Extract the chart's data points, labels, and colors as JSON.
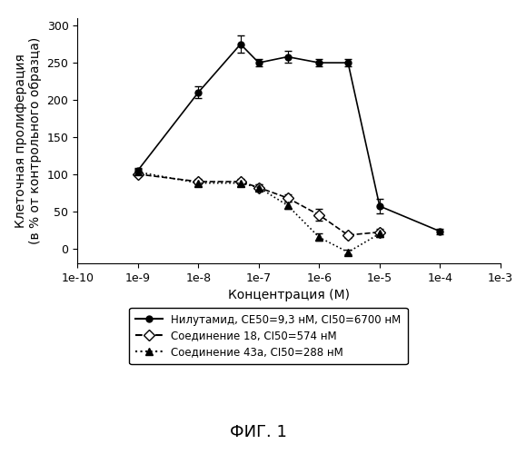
{
  "title": "",
  "xlabel": "Концентрация (М)",
  "ylabel": "Клеточная пролиферация\n(в % от контрольного образца)",
  "fig_label": "ФИГ. 1",
  "xlim_log": [
    -10,
    -3
  ],
  "ylim": [
    -20,
    310
  ],
  "yticks": [
    0,
    50,
    100,
    150,
    200,
    250,
    300
  ],
  "xticks_log": [
    -10,
    -9,
    -8,
    -7,
    -6,
    -5,
    -4,
    -3
  ],
  "series1_name": "—●— Нилутамид, CE50=9,3 нМ, CI50=6700 нМ",
  "series1_x": [
    1e-09,
    1e-08,
    5e-08,
    1e-07,
    3e-07,
    1e-06,
    3e-06,
    1e-05,
    0.0001
  ],
  "series1_y": [
    105,
    210,
    275,
    250,
    258,
    250,
    250,
    57,
    23
  ],
  "series1_err": [
    3,
    8,
    12,
    5,
    8,
    5,
    5,
    10,
    4
  ],
  "series2_name": "–◇– Соединение 18, CI50=574 нМ",
  "series2_x": [
    1e-09,
    1e-08,
    5e-08,
    1e-07,
    3e-07,
    1e-06,
    3e-06,
    1e-05
  ],
  "series2_y": [
    100,
    90,
    90,
    82,
    68,
    45,
    18,
    22
  ],
  "series2_err": [
    3,
    4,
    4,
    4,
    5,
    8,
    4,
    4
  ],
  "series3_name": "···▲··· Соединение 43а, CI50=288 нМ",
  "series3_x": [
    1e-09,
    1e-08,
    5e-08,
    1e-07,
    3e-07,
    1e-06,
    3e-06,
    1e-05
  ],
  "series3_y": [
    103,
    88,
    88,
    82,
    58,
    15,
    -5,
    20
  ],
  "series3_err": [
    4,
    4,
    4,
    4,
    5,
    5,
    3,
    4
  ],
  "legend_line1": "—●— Нилутамид, CE50=9,3 нМ, CI50=6700 нМ",
  "legend_line2": "–◇– Соединение 18, CI50=574 нМ",
  "legend_line3": "···▲··· Соединение 43а, CI50=288 нМ",
  "background_color": "#ffffff",
  "legend_fontsize": 8.5,
  "axis_fontsize": 10,
  "tick_fontsize": 9,
  "fig_label_fontsize": 13
}
